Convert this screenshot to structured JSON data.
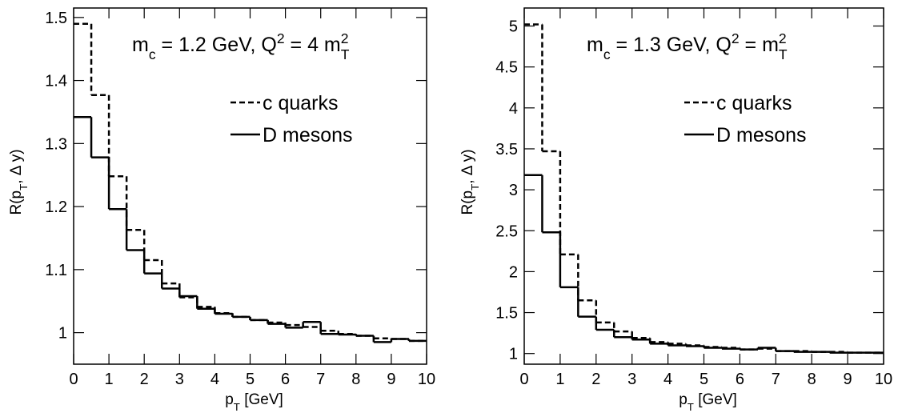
{
  "chart_data": [
    {
      "type": "step-histogram",
      "annotation": [
        {
          "text": "m"
        },
        {
          "text": "c",
          "shift": "sub"
        },
        {
          "text": " = 1.2 GeV, Q"
        },
        {
          "text": "2",
          "shift": "super"
        },
        {
          "text": " = 4 m"
        },
        {
          "text": "2",
          "shift": "super"
        },
        {
          "text": "T",
          "shift": "sub"
        }
      ],
      "y_label": [
        {
          "text": "R(p"
        },
        {
          "text": "T",
          "shift": "sub"
        },
        {
          "text": ", Δ y)"
        }
      ],
      "x_label": [
        {
          "text": "p"
        },
        {
          "text": "T",
          "shift": "sub"
        },
        {
          "text": " [GeV]"
        }
      ],
      "bins": [
        0,
        0.5,
        1,
        1.5,
        2,
        2.5,
        3,
        3.5,
        4,
        4.5,
        5,
        5.5,
        6,
        6.5,
        7,
        7.5,
        8,
        8.5,
        9,
        9.5,
        10
      ],
      "series": [
        {
          "name": "c quarks",
          "color": "#000000",
          "style": "dashed",
          "values": [
            1.49,
            1.377,
            1.248,
            1.163,
            1.115,
            1.078,
            1.056,
            1.041,
            1.031,
            1.025,
            1.02,
            1.016,
            1.012,
            1.009,
            1.003,
            0.998,
            0.995,
            0.991,
            0.99,
            0.987
          ]
        },
        {
          "name": "D mesons",
          "color": "#000000",
          "style": "solid",
          "values": [
            1.342,
            1.278,
            1.196,
            1.131,
            1.094,
            1.07,
            1.058,
            1.038,
            1.03,
            1.025,
            1.02,
            1.014,
            1.008,
            1.017,
            0.998,
            0.997,
            0.995,
            0.985,
            0.99,
            0.987
          ]
        }
      ],
      "xlim": [
        0,
        10
      ],
      "xticks": [
        0,
        1,
        2,
        3,
        4,
        5,
        6,
        7,
        8,
        9,
        10
      ],
      "ylim": [
        0.95,
        1.515
      ],
      "yticks": [
        1,
        1.1,
        1.2,
        1.3,
        1.4,
        1.5
      ]
    },
    {
      "type": "step-histogram",
      "annotation": [
        {
          "text": "m"
        },
        {
          "text": "c",
          "shift": "sub"
        },
        {
          "text": " = 1.3 GeV, Q"
        },
        {
          "text": "2",
          "shift": "super"
        },
        {
          "text": " = m"
        },
        {
          "text": "2",
          "shift": "super"
        },
        {
          "text": "T",
          "shift": "sub"
        }
      ],
      "y_label": [
        {
          "text": "R(p"
        },
        {
          "text": "T",
          "shift": "sub"
        },
        {
          "text": ", Δ y)"
        }
      ],
      "x_label": [
        {
          "text": "p"
        },
        {
          "text": "T",
          "shift": "sub"
        },
        {
          "text": " [GeV]"
        }
      ],
      "bins": [
        0,
        0.5,
        1,
        1.5,
        2,
        2.5,
        3,
        3.5,
        4,
        4.5,
        5,
        5.5,
        6,
        6.5,
        7,
        7.5,
        8,
        8.5,
        9,
        9.5,
        10
      ],
      "series": [
        {
          "name": "c quarks",
          "color": "#000000",
          "style": "dashed",
          "values": [
            5.02,
            3.47,
            2.21,
            1.65,
            1.38,
            1.27,
            1.19,
            1.14,
            1.12,
            1.1,
            1.08,
            1.07,
            1.05,
            1.06,
            1.03,
            1.03,
            1.02,
            1.02,
            1.01,
            1.01
          ]
        },
        {
          "name": "D mesons",
          "color": "#000000",
          "style": "solid",
          "values": [
            3.18,
            2.48,
            1.81,
            1.45,
            1.29,
            1.2,
            1.17,
            1.12,
            1.1,
            1.09,
            1.07,
            1.06,
            1.05,
            1.07,
            1.03,
            1.02,
            1.02,
            1.01,
            1.01,
            1.01
          ]
        }
      ],
      "xlim": [
        0,
        10
      ],
      "xticks": [
        0,
        1,
        2,
        3,
        4,
        5,
        6,
        7,
        8,
        9,
        10
      ],
      "ylim": [
        0.87,
        5.22
      ],
      "yticks": [
        1,
        1.5,
        2,
        2.5,
        3,
        3.5,
        4,
        4.5,
        5
      ]
    }
  ]
}
